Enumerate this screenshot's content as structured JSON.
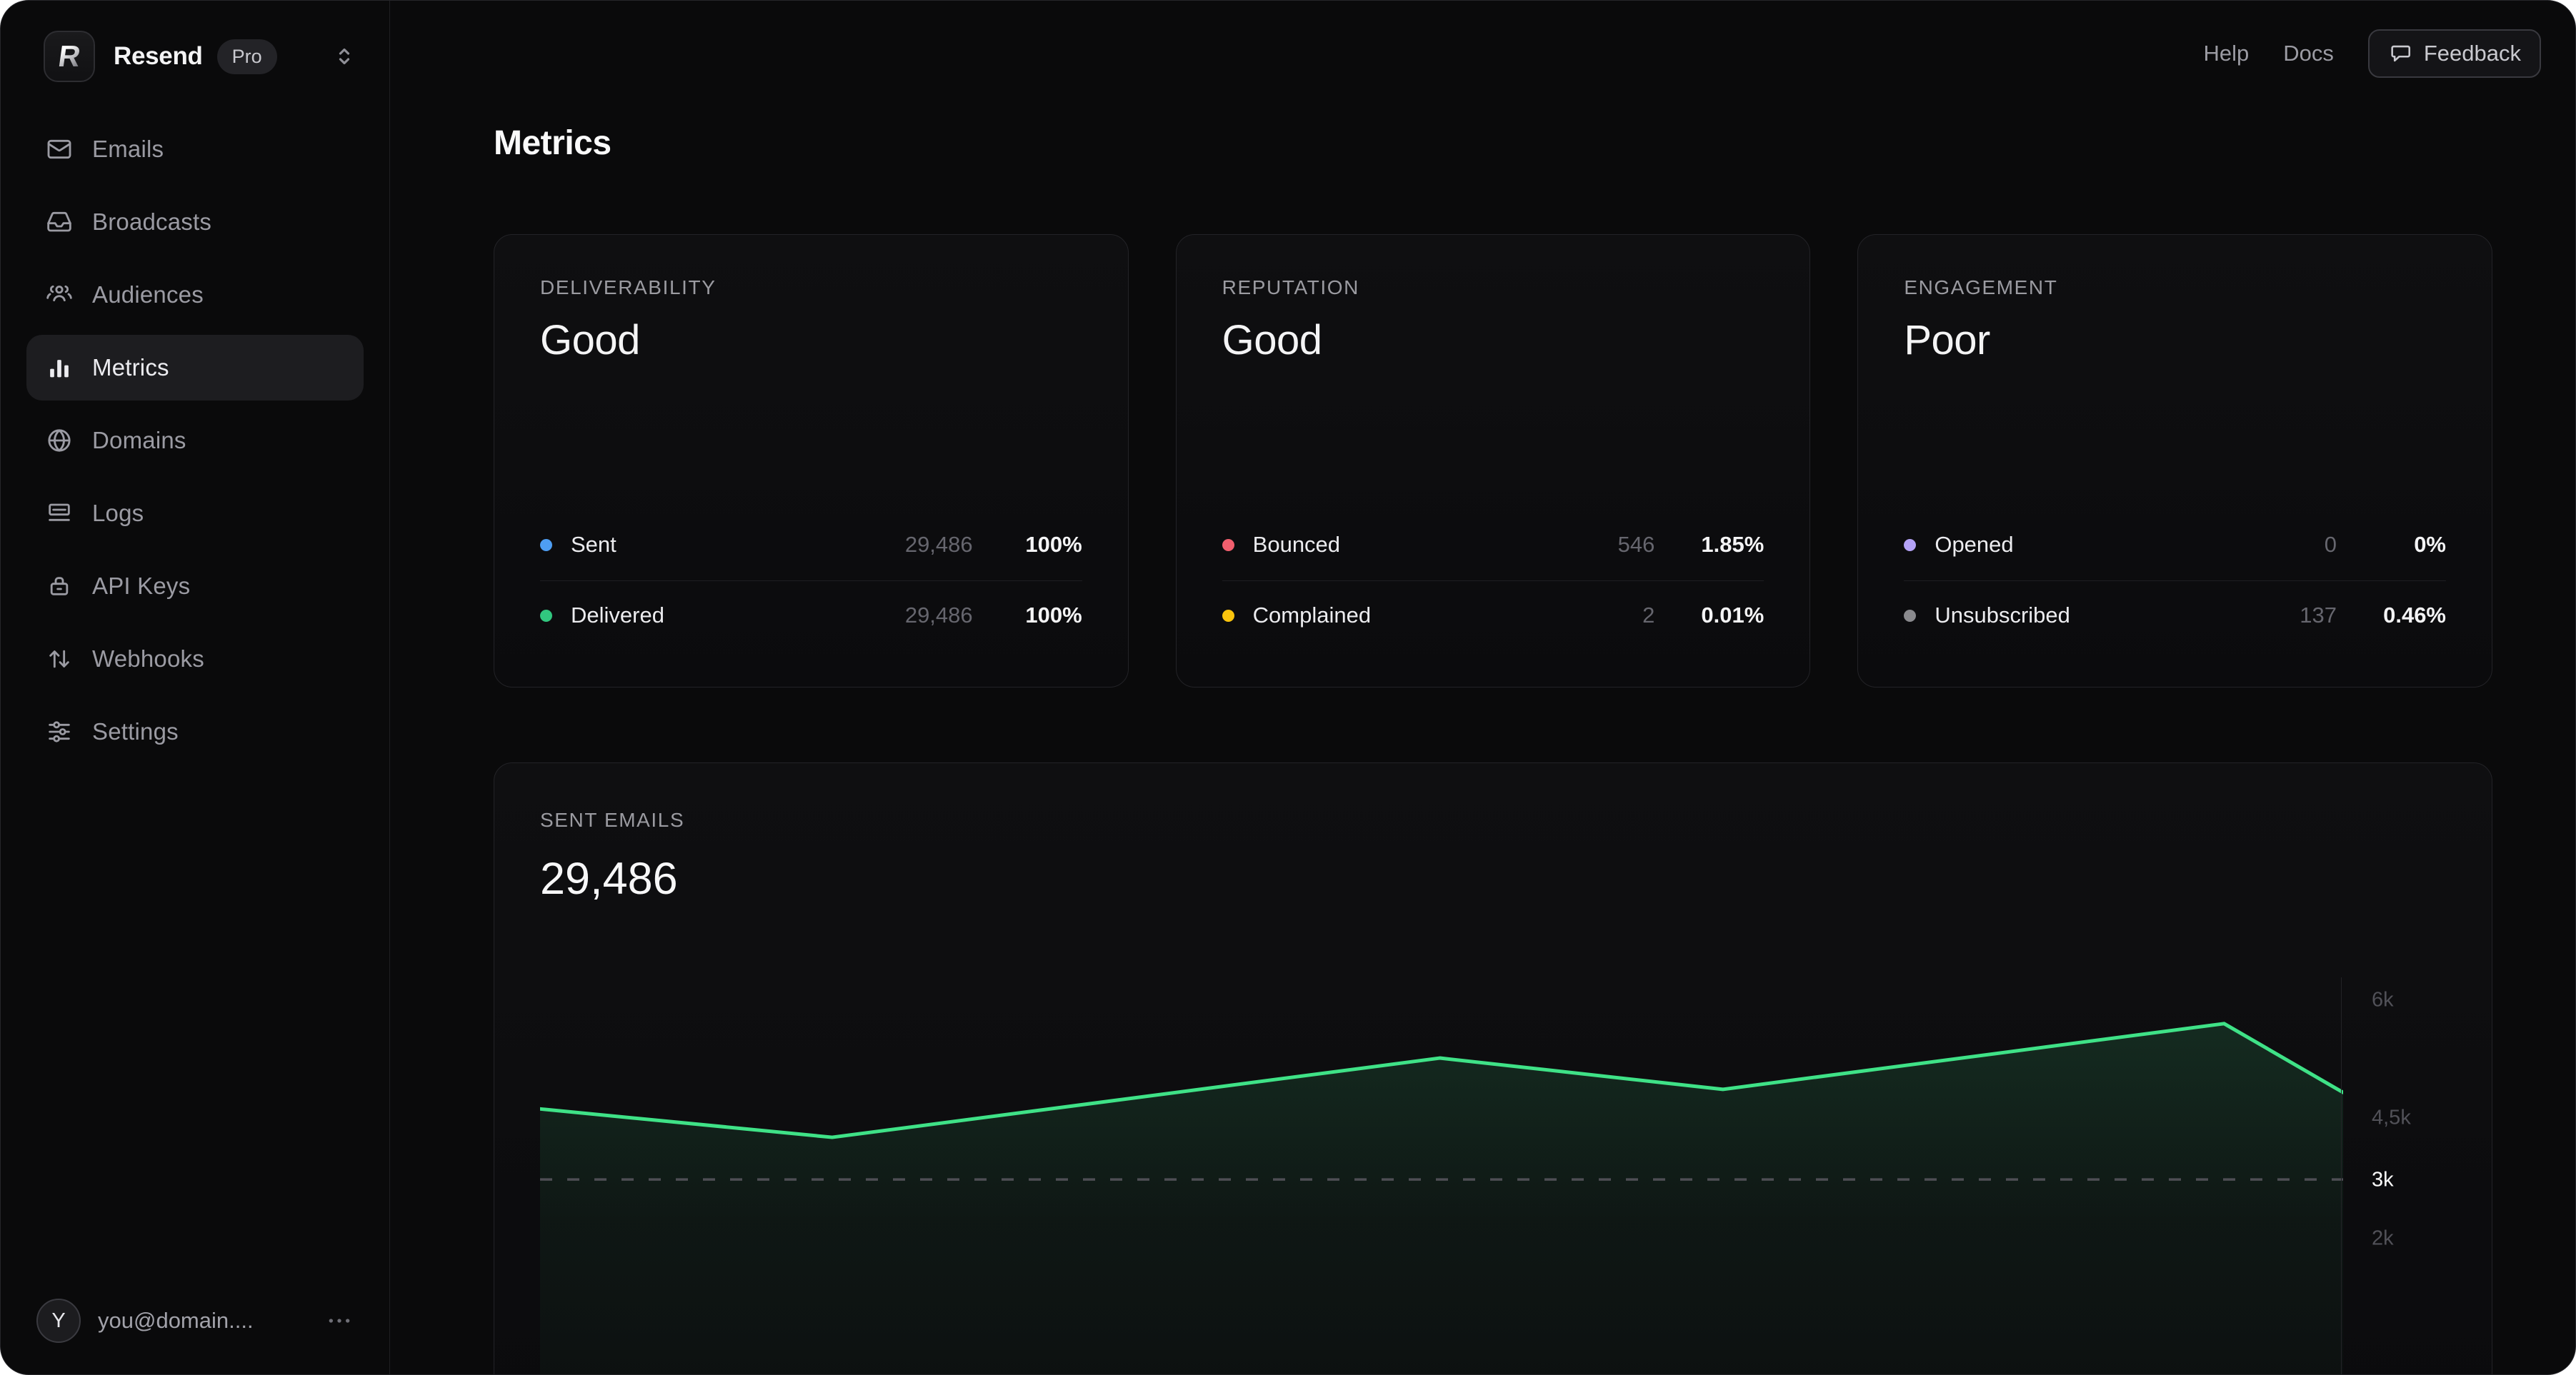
{
  "sidebar": {
    "brand": {
      "logo_letter": "R",
      "name": "Resend",
      "plan_badge": "Pro"
    },
    "items": [
      {
        "label": "Emails",
        "icon": "envelope-icon"
      },
      {
        "label": "Broadcasts",
        "icon": "inbox-icon"
      },
      {
        "label": "Audiences",
        "icon": "users-icon"
      },
      {
        "label": "Metrics",
        "icon": "bar-chart-icon",
        "active": true
      },
      {
        "label": "Domains",
        "icon": "globe-icon"
      },
      {
        "label": "Logs",
        "icon": "logs-icon"
      },
      {
        "label": "API Keys",
        "icon": "lock-icon"
      },
      {
        "label": "Webhooks",
        "icon": "arrows-up-down-icon"
      },
      {
        "label": "Settings",
        "icon": "sliders-icon"
      }
    ],
    "user": {
      "avatar_initial": "Y",
      "email": "you@domain...."
    }
  },
  "header": {
    "links": [
      {
        "label": "Help"
      },
      {
        "label": "Docs"
      }
    ],
    "feedback": {
      "label": "Feedback",
      "icon": "speech-bubble-icon"
    }
  },
  "page": {
    "title": "Metrics"
  },
  "cards": [
    {
      "label": "DELIVERABILITY",
      "status": "Good",
      "rows": [
        {
          "label": "Sent",
          "count": "29,486",
          "percent": "100%",
          "color": "#4e9ef3"
        },
        {
          "label": "Delivered",
          "count": "29,486",
          "percent": "100%",
          "color": "#31c77f"
        }
      ]
    },
    {
      "label": "REPUTATION",
      "status": "Good",
      "rows": [
        {
          "label": "Bounced",
          "count": "546",
          "percent": "1.85%",
          "color": "#f25f6e"
        },
        {
          "label": "Complained",
          "count": "2",
          "percent": "0.01%",
          "color": "#fbc40d"
        }
      ]
    },
    {
      "label": "ENGAGEMENT",
      "status": "Poor",
      "rows": [
        {
          "label": "Opened",
          "count": "0",
          "percent": "0%",
          "color": "#b5a3f7"
        },
        {
          "label": "Unsubscribed",
          "count": "137",
          "percent": "0.46%",
          "color": "#8a8a8e"
        }
      ]
    }
  ],
  "chart_card": {
    "label": "SENT EMAILS",
    "total": "29,486"
  },
  "chart_data": {
    "type": "area",
    "title": "SENT EMAILS",
    "total": "29,486",
    "line_color": "#3fe287",
    "legend": "none",
    "y_axis_position": "right",
    "x_tick_labels_visible": false,
    "points": [
      {
        "x_fraction": 0.0,
        "value": 4610
      },
      {
        "x_fraction": 0.162,
        "value": 4020
      },
      {
        "x_fraction": 0.499,
        "value": 5260
      },
      {
        "x_fraction": 0.656,
        "value": 4860
      },
      {
        "x_fraction": 0.934,
        "value": 5700
      },
      {
        "x_fraction": 1.0,
        "value": 4820
      }
    ],
    "y_ticks": [
      {
        "label": "6k",
        "value": 6000,
        "highlighted": false
      },
      {
        "label": "4,5k",
        "value": 4500,
        "highlighted": false
      },
      {
        "label": "3k",
        "value": 3000,
        "highlighted": true
      },
      {
        "label": "2k",
        "value": 2000,
        "highlighted": false
      }
    ],
    "reference_line_value": 3000
  }
}
